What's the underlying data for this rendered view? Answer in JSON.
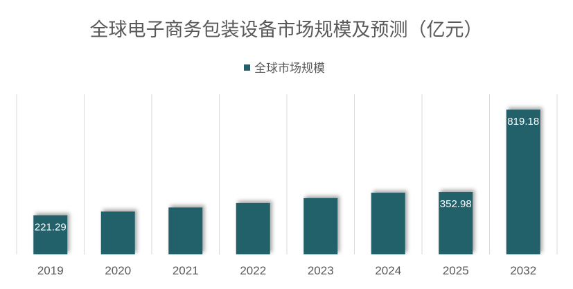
{
  "chart_data": {
    "type": "bar",
    "title": "全球电子商务包装设备市场规模及预测（亿元）",
    "xlabel": "",
    "ylabel": "",
    "categories": [
      "2019",
      "2020",
      "2021",
      "2022",
      "2023",
      "2024",
      "2025",
      "2032"
    ],
    "series": [
      {
        "name": "全球市场规模",
        "values": [
          221.29,
          242.3,
          265.4,
          290.7,
          318.5,
          348.9,
          352.98,
          819.18
        ],
        "labels": [
          "221.29",
          "",
          "",
          "",
          "",
          "",
          "352.98",
          "819.18"
        ]
      }
    ],
    "ylim": [
      0,
      820
    ],
    "grid": "vertical category separators",
    "legend_position": "top",
    "colors": {
      "bar": "#24606B",
      "grid": "#d9d9d9",
      "text": "#595959",
      "label": "#ffffff"
    }
  }
}
